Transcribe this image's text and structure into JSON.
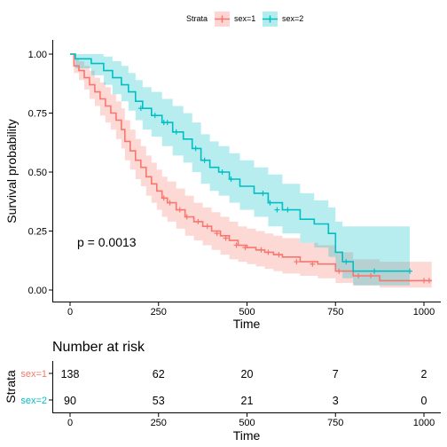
{
  "legend": {
    "title": "Strata",
    "items": [
      {
        "label": "sex=1",
        "color": "#F8766D"
      },
      {
        "label": "sex=2",
        "color": "#00BFC4"
      }
    ]
  },
  "colors": {
    "s1": "#F8766D",
    "s2": "#00BFC4",
    "s1_band": "#F8766D",
    "s2_band": "#00BFC4"
  },
  "chart_data": [
    {
      "type": "line",
      "subtype": "kaplan-meier",
      "xlabel": "Time",
      "ylabel": "Survival probability",
      "xlim": [
        0,
        1022
      ],
      "ylim": [
        0,
        1
      ],
      "xticks": [
        0,
        250,
        500,
        750,
        1000
      ],
      "xtick_labels": [
        "0",
        "250",
        "500",
        "750",
        "1000"
      ],
      "yticks": [
        0,
        0.25,
        0.5,
        0.75,
        1
      ],
      "ytick_labels": [
        "0.00",
        "0.25",
        "0.50",
        "0.75",
        "1.00"
      ],
      "grid": false,
      "legend_position": "top",
      "annotation": "p = 0.0013",
      "series": [
        {
          "name": "sex=1",
          "color": "#F8766D",
          "points": [
            [
              0,
              1.0
            ],
            [
              11,
              0.95
            ],
            [
              25,
              0.93
            ],
            [
              40,
              0.9
            ],
            [
              55,
              0.87
            ],
            [
              70,
              0.84
            ],
            [
              85,
              0.81
            ],
            [
              100,
              0.78
            ],
            [
              115,
              0.75
            ],
            [
              130,
              0.72
            ],
            [
              145,
              0.68
            ],
            [
              155,
              0.63
            ],
            [
              170,
              0.59
            ],
            [
              185,
              0.55
            ],
            [
              200,
              0.52
            ],
            [
              215,
              0.48
            ],
            [
              230,
              0.45
            ],
            [
              245,
              0.42
            ],
            [
              260,
              0.39
            ],
            [
              275,
              0.37
            ],
            [
              300,
              0.34
            ],
            [
              325,
              0.31
            ],
            [
              350,
              0.29
            ],
            [
              375,
              0.27
            ],
            [
              400,
              0.25
            ],
            [
              425,
              0.23
            ],
            [
              450,
              0.21
            ],
            [
              475,
              0.19
            ],
            [
              500,
              0.18
            ],
            [
              525,
              0.17
            ],
            [
              550,
              0.16
            ],
            [
              575,
              0.15
            ],
            [
              600,
              0.14
            ],
            [
              650,
              0.12
            ],
            [
              700,
              0.11
            ],
            [
              750,
              0.08
            ],
            [
              800,
              0.06
            ],
            [
              875,
              0.04
            ],
            [
              1022,
              0.04
            ]
          ],
          "lower": [
            [
              0,
              1.0
            ],
            [
              11,
              0.92
            ],
            [
              25,
              0.89
            ],
            [
              40,
              0.85
            ],
            [
              55,
              0.81
            ],
            [
              70,
              0.78
            ],
            [
              85,
              0.74
            ],
            [
              100,
              0.71
            ],
            [
              115,
              0.68
            ],
            [
              130,
              0.64
            ],
            [
              145,
              0.6
            ],
            [
              155,
              0.55
            ],
            [
              170,
              0.51
            ],
            [
              185,
              0.47
            ],
            [
              200,
              0.44
            ],
            [
              215,
              0.4
            ],
            [
              230,
              0.37
            ],
            [
              245,
              0.34
            ],
            [
              260,
              0.31
            ],
            [
              275,
              0.29
            ],
            [
              300,
              0.26
            ],
            [
              325,
              0.23
            ],
            [
              350,
              0.21
            ],
            [
              375,
              0.19
            ],
            [
              400,
              0.17
            ],
            [
              425,
              0.15
            ],
            [
              450,
              0.13
            ],
            [
              475,
              0.12
            ],
            [
              500,
              0.11
            ],
            [
              525,
              0.1
            ],
            [
              550,
              0.09
            ],
            [
              575,
              0.08
            ],
            [
              600,
              0.07
            ],
            [
              650,
              0.06
            ],
            [
              700,
              0.05
            ],
            [
              750,
              0.03
            ],
            [
              800,
              0.02
            ],
            [
              875,
              0.01
            ],
            [
              1022,
              0.01
            ]
          ],
          "upper": [
            [
              0,
              1.0
            ],
            [
              11,
              0.98
            ],
            [
              25,
              0.97
            ],
            [
              40,
              0.95
            ],
            [
              55,
              0.93
            ],
            [
              70,
              0.9
            ],
            [
              85,
              0.88
            ],
            [
              100,
              0.86
            ],
            [
              115,
              0.83
            ],
            [
              130,
              0.8
            ],
            [
              145,
              0.77
            ],
            [
              155,
              0.72
            ],
            [
              170,
              0.68
            ],
            [
              185,
              0.64
            ],
            [
              200,
              0.61
            ],
            [
              215,
              0.57
            ],
            [
              230,
              0.54
            ],
            [
              245,
              0.51
            ],
            [
              260,
              0.48
            ],
            [
              275,
              0.46
            ],
            [
              300,
              0.43
            ],
            [
              325,
              0.4
            ],
            [
              350,
              0.37
            ],
            [
              375,
              0.35
            ],
            [
              400,
              0.33
            ],
            [
              425,
              0.31
            ],
            [
              450,
              0.29
            ],
            [
              475,
              0.27
            ],
            [
              500,
              0.26
            ],
            [
              525,
              0.25
            ],
            [
              550,
              0.24
            ],
            [
              575,
              0.23
            ],
            [
              600,
              0.22
            ],
            [
              650,
              0.2
            ],
            [
              700,
              0.19
            ],
            [
              750,
              0.16
            ],
            [
              800,
              0.13
            ],
            [
              875,
              0.12
            ],
            [
              1022,
              0.12
            ]
          ],
          "censor": [
            [
              265,
              0.39
            ],
            [
              282,
              0.37
            ],
            [
              310,
              0.34
            ],
            [
              330,
              0.31
            ],
            [
              362,
              0.29
            ],
            [
              388,
              0.27
            ],
            [
              415,
              0.24
            ],
            [
              440,
              0.22
            ],
            [
              470,
              0.19
            ],
            [
              495,
              0.18
            ],
            [
              540,
              0.17
            ],
            [
              560,
              0.16
            ],
            [
              590,
              0.15
            ],
            [
              640,
              0.12
            ],
            [
              685,
              0.11
            ],
            [
              760,
              0.08
            ],
            [
              815,
              0.06
            ],
            [
              850,
              0.06
            ],
            [
              1000,
              0.04
            ],
            [
              1015,
              0.04
            ]
          ]
        },
        {
          "name": "sex=2",
          "color": "#00BFC4",
          "points": [
            [
              0,
              1.0
            ],
            [
              15,
              0.98
            ],
            [
              60,
              0.96
            ],
            [
              95,
              0.93
            ],
            [
              120,
              0.9
            ],
            [
              145,
              0.87
            ],
            [
              165,
              0.84
            ],
            [
              185,
              0.8
            ],
            [
              205,
              0.77
            ],
            [
              230,
              0.74
            ],
            [
              260,
              0.71
            ],
            [
              290,
              0.67
            ],
            [
              320,
              0.64
            ],
            [
              345,
              0.6
            ],
            [
              370,
              0.55
            ],
            [
              395,
              0.52
            ],
            [
              420,
              0.5
            ],
            [
              450,
              0.47
            ],
            [
              480,
              0.44
            ],
            [
              520,
              0.41
            ],
            [
              560,
              0.37
            ],
            [
              600,
              0.34
            ],
            [
              650,
              0.3
            ],
            [
              690,
              0.28
            ],
            [
              730,
              0.24
            ],
            [
              750,
              0.16
            ],
            [
              770,
              0.12
            ],
            [
              800,
              0.08
            ],
            [
              960,
              0.08
            ]
          ],
          "lower": [
            [
              0,
              1.0
            ],
            [
              15,
              0.94
            ],
            [
              60,
              0.91
            ],
            [
              95,
              0.87
            ],
            [
              120,
              0.83
            ],
            [
              145,
              0.8
            ],
            [
              165,
              0.76
            ],
            [
              185,
              0.72
            ],
            [
              205,
              0.68
            ],
            [
              230,
              0.65
            ],
            [
              260,
              0.61
            ],
            [
              290,
              0.57
            ],
            [
              320,
              0.54
            ],
            [
              345,
              0.5
            ],
            [
              370,
              0.45
            ],
            [
              395,
              0.42
            ],
            [
              420,
              0.4
            ],
            [
              450,
              0.37
            ],
            [
              480,
              0.34
            ],
            [
              520,
              0.31
            ],
            [
              560,
              0.27
            ],
            [
              600,
              0.24
            ],
            [
              650,
              0.2
            ],
            [
              690,
              0.18
            ],
            [
              730,
              0.14
            ],
            [
              750,
              0.08
            ],
            [
              770,
              0.05
            ],
            [
              800,
              0.02
            ],
            [
              960,
              0.02
            ]
          ],
          "upper": [
            [
              0,
              1.0
            ],
            [
              15,
              1.0
            ],
            [
              60,
              1.0
            ],
            [
              95,
              0.99
            ],
            [
              120,
              0.97
            ],
            [
              145,
              0.95
            ],
            [
              165,
              0.92
            ],
            [
              185,
              0.89
            ],
            [
              205,
              0.86
            ],
            [
              230,
              0.84
            ],
            [
              260,
              0.81
            ],
            [
              290,
              0.78
            ],
            [
              320,
              0.75
            ],
            [
              345,
              0.71
            ],
            [
              370,
              0.66
            ],
            [
              395,
              0.63
            ],
            [
              420,
              0.61
            ],
            [
              450,
              0.58
            ],
            [
              480,
              0.55
            ],
            [
              520,
              0.52
            ],
            [
              560,
              0.49
            ],
            [
              600,
              0.45
            ],
            [
              650,
              0.41
            ],
            [
              690,
              0.38
            ],
            [
              730,
              0.35
            ],
            [
              750,
              0.29
            ],
            [
              770,
              0.27
            ],
            [
              800,
              0.27
            ],
            [
              960,
              0.27
            ]
          ],
          "censor": [
            [
              200,
              0.77
            ],
            [
              240,
              0.74
            ],
            [
              265,
              0.71
            ],
            [
              275,
              0.71
            ],
            [
              300,
              0.67
            ],
            [
              355,
              0.6
            ],
            [
              380,
              0.55
            ],
            [
              430,
              0.5
            ],
            [
              455,
              0.47
            ],
            [
              545,
              0.41
            ],
            [
              565,
              0.37
            ],
            [
              585,
              0.34
            ],
            [
              615,
              0.34
            ],
            [
              780,
              0.12
            ],
            [
              860,
              0.08
            ],
            [
              960,
              0.08
            ]
          ]
        }
      ]
    },
    {
      "type": "table",
      "title": "Number at risk",
      "xlabel": "Time",
      "ylabel": "Strata",
      "xlim": [
        0,
        1022
      ],
      "xticks": [
        0,
        250,
        500,
        750,
        1000
      ],
      "xtick_labels": [
        "0",
        "250",
        "500",
        "750",
        "1000"
      ],
      "rows": [
        {
          "label": "sex=1",
          "color": "#F8766D",
          "values": [
            "138",
            "62",
            "20",
            "7",
            "2"
          ]
        },
        {
          "label": "sex=2",
          "color": "#00BFC4",
          "values": [
            "90",
            "53",
            "21",
            "3",
            "0"
          ]
        }
      ]
    }
  ]
}
